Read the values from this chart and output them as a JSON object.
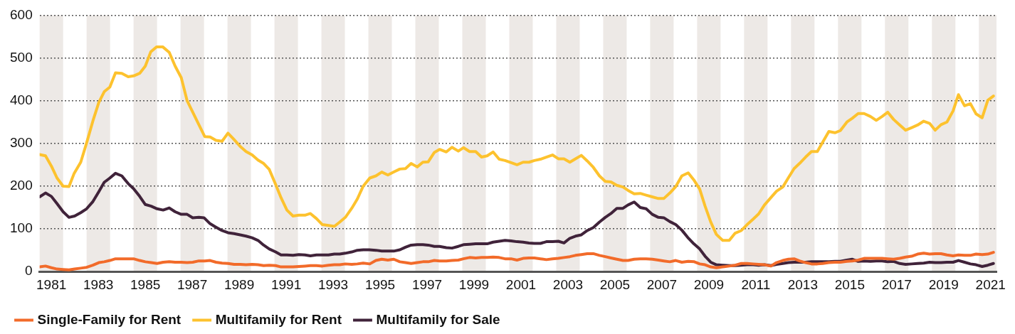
{
  "chart_data": {
    "type": "line",
    "marker": "none",
    "grid": "y",
    "legend": "bottom left",
    "xlim": [
      1981,
      2021.75
    ],
    "ylim": [
      0,
      600
    ],
    "yticks": [
      0,
      100,
      200,
      300,
      400,
      500,
      600
    ],
    "xticks": [
      {
        "value": 1981.5,
        "label": "1981"
      },
      {
        "value": 1983.5,
        "label": "1983"
      },
      {
        "value": 1985.5,
        "label": "1985"
      },
      {
        "value": 1987.5,
        "label": "1987"
      },
      {
        "value": 1989.5,
        "label": "1989"
      },
      {
        "value": 1991.5,
        "label": "1991"
      },
      {
        "value": 1993.5,
        "label": "1993"
      },
      {
        "value": 1995.5,
        "label": "1995"
      },
      {
        "value": 1997.5,
        "label": "1997"
      },
      {
        "value": 1999.5,
        "label": "1999"
      },
      {
        "value": 2001.5,
        "label": "2001"
      },
      {
        "value": 2003.5,
        "label": "2003"
      },
      {
        "value": 2005.5,
        "label": "2005"
      },
      {
        "value": 2007.5,
        "label": "2007"
      },
      {
        "value": 2009.5,
        "label": "2009"
      },
      {
        "value": 2011.5,
        "label": "2011"
      },
      {
        "value": 2013.5,
        "label": "2013"
      },
      {
        "value": 2015.5,
        "label": "2015"
      },
      {
        "value": 2017.5,
        "label": "2017"
      },
      {
        "value": 2019.5,
        "label": "2019"
      },
      {
        "value": 2021.5,
        "label": "2021"
      }
    ],
    "bands": [
      {
        "axis": "x",
        "from": 1981,
        "to": 1982,
        "color": "#ede9e6"
      },
      {
        "axis": "x",
        "from": 1983,
        "to": 1984,
        "color": "#ede9e6"
      },
      {
        "axis": "x",
        "from": 1985,
        "to": 1986,
        "color": "#ede9e6"
      },
      {
        "axis": "x",
        "from": 1987,
        "to": 1988,
        "color": "#ede9e6"
      },
      {
        "axis": "x",
        "from": 1989,
        "to": 1990,
        "color": "#ede9e6"
      },
      {
        "axis": "x",
        "from": 1991,
        "to": 1992,
        "color": "#ede9e6"
      },
      {
        "axis": "x",
        "from": 1993,
        "to": 1994,
        "color": "#ede9e6"
      },
      {
        "axis": "x",
        "from": 1995,
        "to": 1996,
        "color": "#ede9e6"
      },
      {
        "axis": "x",
        "from": 1997,
        "to": 1998,
        "color": "#ede9e6"
      },
      {
        "axis": "x",
        "from": 1999,
        "to": 2000,
        "color": "#ede9e6"
      },
      {
        "axis": "x",
        "from": 2001,
        "to": 2002,
        "color": "#ede9e6"
      },
      {
        "axis": "x",
        "from": 2003,
        "to": 2004,
        "color": "#ede9e6"
      },
      {
        "axis": "x",
        "from": 2005,
        "to": 2006,
        "color": "#ede9e6"
      },
      {
        "axis": "x",
        "from": 2007,
        "to": 2008,
        "color": "#ede9e6"
      },
      {
        "axis": "x",
        "from": 2009,
        "to": 2010,
        "color": "#ede9e6"
      },
      {
        "axis": "x",
        "from": 2011,
        "to": 2012,
        "color": "#ede9e6"
      },
      {
        "axis": "x",
        "from": 2013,
        "to": 2014,
        "color": "#ede9e6"
      },
      {
        "axis": "x",
        "from": 2015,
        "to": 2016,
        "color": "#ede9e6"
      },
      {
        "axis": "x",
        "from": 2017,
        "to": 2018,
        "color": "#ede9e6"
      },
      {
        "axis": "x",
        "from": 2019,
        "to": 2020,
        "color": "#ede9e6"
      },
      {
        "axis": "x",
        "from": 2021,
        "to": 2021.75,
        "color": "#ede9e6"
      }
    ],
    "series": [
      {
        "name": "Single-Family for Rent",
        "color": "#f26b2a",
        "x": [
          1981.0,
          1981.25,
          1981.5,
          1981.74,
          1982.0,
          1982.25,
          1982.49,
          1982.75,
          1983.0,
          1983.27,
          1983.52,
          1983.75,
          1983.99,
          1984.23,
          1984.5,
          1984.77,
          1985.0,
          1985.26,
          1985.5,
          1985.75,
          1986.0,
          1986.26,
          1986.52,
          1986.77,
          1987.03,
          1987.28,
          1987.52,
          1987.78,
          1988.03,
          1988.26,
          1988.51,
          1988.77,
          1989.02,
          1989.28,
          1989.54,
          1989.79,
          1990.05,
          1990.3,
          1990.54,
          1990.78,
          1991.05,
          1991.28,
          1991.53,
          1991.79,
          1992.04,
          1992.3,
          1992.53,
          1992.79,
          1993.04,
          1993.3,
          1993.55,
          1993.78,
          1994.02,
          1994.29,
          1994.53,
          1994.78,
          1995.06,
          1995.32,
          1995.57,
          1995.83,
          1996.08,
          1996.34,
          1996.58,
          1996.82,
          1997.08,
          1997.32,
          1997.55,
          1997.81,
          1998.03,
          1998.32,
          1998.56,
          1998.83,
          1999.05,
          1999.31,
          1999.57,
          1999.82,
          2000.06,
          2000.31,
          2000.57,
          2000.82,
          2001.08,
          2001.33,
          2001.59,
          2001.84,
          2002.07,
          2002.33,
          2002.58,
          2002.84,
          2003.09,
          2003.33,
          2003.58,
          2003.82,
          2004.07,
          2004.32,
          2004.58,
          2004.84,
          2005.09,
          2005.33,
          2005.58,
          2005.84,
          2006.06,
          2006.32,
          2006.58,
          2006.83,
          2007.09,
          2007.35,
          2007.58,
          2007.84,
          2008.09,
          2008.35,
          2008.62,
          2008.88,
          2009.11,
          2009.34,
          2009.58,
          2009.82,
          2010.09,
          2010.37,
          2010.62,
          2010.88,
          2011.13,
          2011.39,
          2011.62,
          2011.87,
          2012.14,
          2012.38,
          2012.65,
          2012.89,
          2013.13,
          2013.36,
          2013.62,
          2013.87,
          2014.12,
          2014.35,
          2014.61,
          2014.87,
          2015.1,
          2015.38,
          2015.61,
          2015.86,
          2016.11,
          2016.38,
          2016.63,
          2016.88,
          2017.12,
          2017.37,
          2017.63,
          2017.88,
          2018.14,
          2018.39,
          2018.65,
          2018.9,
          2019.14,
          2019.39,
          2019.64,
          2019.9,
          2020.13,
          2020.39,
          2020.64,
          2020.88,
          2021.14,
          2021.38,
          2021.62
        ],
        "values": [
          11,
          13,
          9,
          6,
          5,
          4,
          6,
          8,
          10,
          15,
          21,
          23,
          26,
          30,
          30,
          30,
          30,
          26,
          23,
          21,
          19,
          22,
          23,
          22,
          22,
          21,
          22,
          25,
          25,
          26,
          22,
          20,
          19,
          17,
          17,
          16,
          17,
          16,
          14,
          15,
          14,
          11,
          11,
          11,
          12,
          13,
          14,
          14,
          13,
          15,
          16,
          16,
          18,
          17,
          18,
          20,
          18,
          26,
          29,
          27,
          29,
          23,
          21,
          19,
          21,
          23,
          23,
          26,
          25,
          25,
          26,
          27,
          30,
          33,
          32,
          33,
          33,
          34,
          33,
          30,
          30,
          27,
          31,
          32,
          32,
          30,
          28,
          30,
          31,
          33,
          35,
          38,
          40,
          42,
          42,
          38,
          35,
          32,
          29,
          26,
          26,
          29,
          30,
          30,
          29,
          27,
          25,
          23,
          26,
          22,
          24,
          23,
          18,
          16,
          11,
          9,
          11,
          13,
          15,
          19,
          19,
          18,
          17,
          16,
          13,
          21,
          26,
          29,
          30,
          25,
          21,
          18,
          18,
          19,
          21,
          22,
          22,
          24,
          25,
          27,
          31,
          31,
          31,
          31,
          30,
          29,
          31,
          34,
          36,
          41,
          43,
          41,
          42,
          42,
          39,
          37,
          39,
          38,
          38,
          41,
          40,
          41,
          45
        ]
      },
      {
        "name": "Multifamily for Rent",
        "color": "#fdc22e",
        "x": [
          1981.0,
          1981.25,
          1981.5,
          1981.74,
          1982.0,
          1982.25,
          1982.47,
          1982.75,
          1983.0,
          1983.27,
          1983.52,
          1983.75,
          1983.99,
          1984.23,
          1984.5,
          1984.77,
          1985.0,
          1985.26,
          1985.5,
          1985.73,
          1985.98,
          1986.24,
          1986.52,
          1986.77,
          1987.03,
          1987.28,
          1987.52,
          1987.78,
          1988.03,
          1988.26,
          1988.51,
          1988.77,
          1989.02,
          1989.28,
          1989.54,
          1989.79,
          1990.05,
          1990.3,
          1990.54,
          1990.78,
          1991.05,
          1991.28,
          1991.53,
          1991.79,
          1992.04,
          1992.3,
          1992.53,
          1992.79,
          1993.04,
          1993.3,
          1993.55,
          1993.78,
          1994.02,
          1994.29,
          1994.53,
          1994.78,
          1995.06,
          1995.32,
          1995.57,
          1995.83,
          1996.08,
          1996.34,
          1996.58,
          1996.82,
          1997.08,
          1997.32,
          1997.55,
          1997.81,
          1998.03,
          1998.32,
          1998.56,
          1998.83,
          1999.05,
          1999.31,
          1999.57,
          1999.82,
          2000.06,
          2000.31,
          2000.57,
          2000.82,
          2001.08,
          2001.33,
          2001.59,
          2001.84,
          2002.07,
          2002.33,
          2002.58,
          2002.84,
          2003.09,
          2003.33,
          2003.58,
          2003.82,
          2004.07,
          2004.32,
          2004.58,
          2004.84,
          2005.09,
          2005.33,
          2005.58,
          2005.84,
          2006.06,
          2006.32,
          2006.58,
          2006.83,
          2007.09,
          2007.35,
          2007.58,
          2007.84,
          2008.09,
          2008.35,
          2008.62,
          2008.88,
          2009.11,
          2009.34,
          2009.58,
          2009.82,
          2010.09,
          2010.37,
          2010.62,
          2010.88,
          2011.13,
          2011.39,
          2011.62,
          2011.87,
          2012.14,
          2012.38,
          2012.65,
          2012.89,
          2013.13,
          2013.36,
          2013.62,
          2013.87,
          2014.12,
          2014.35,
          2014.61,
          2014.87,
          2015.1,
          2015.38,
          2015.61,
          2015.86,
          2016.11,
          2016.38,
          2016.63,
          2016.88,
          2017.12,
          2017.37,
          2017.63,
          2017.88,
          2018.14,
          2018.39,
          2018.65,
          2018.9,
          2019.14,
          2019.39,
          2019.64,
          2019.9,
          2020.13,
          2020.39,
          2020.64,
          2020.88,
          2021.14,
          2021.38,
          2021.62
        ],
        "values": [
          274,
          271,
          247,
          219,
          200,
          199,
          230,
          256,
          301,
          353,
          396,
          421,
          432,
          465,
          464,
          456,
          458,
          464,
          481,
          514,
          526,
          526,
          513,
          481,
          454,
          400,
          373,
          344,
          316,
          315,
          307,
          305,
          324,
          309,
          293,
          281,
          273,
          261,
          253,
          239,
          204,
          173,
          144,
          130,
          132,
          132,
          136,
          124,
          110,
          108,
          106,
          116,
          127,
          148,
          170,
          200,
          219,
          224,
          233,
          226,
          233,
          240,
          241,
          253,
          245,
          256,
          257,
          279,
          286,
          280,
          291,
          282,
          290,
          281,
          281,
          268,
          271,
          280,
          263,
          260,
          255,
          250,
          256,
          256,
          260,
          263,
          268,
          273,
          264,
          264,
          256,
          264,
          272,
          259,
          244,
          224,
          211,
          210,
          202,
          198,
          190,
          182,
          183,
          179,
          175,
          171,
          171,
          184,
          199,
          224,
          231,
          213,
          193,
          153,
          116,
          87,
          73,
          73,
          90,
          96,
          110,
          123,
          135,
          156,
          173,
          188,
          198,
          220,
          241,
          253,
          268,
          281,
          281,
          303,
          328,
          325,
          330,
          350,
          359,
          370,
          370,
          363,
          354,
          363,
          373,
          356,
          343,
          331,
          337,
          343,
          352,
          347,
          331,
          344,
          350,
          376,
          414,
          388,
          393,
          369,
          360,
          401,
          411
        ]
      },
      {
        "name": "Multifamily for Sale",
        "color": "#40233a",
        "x": [
          1981.0,
          1981.25,
          1981.5,
          1981.74,
          1982.0,
          1982.25,
          1982.49,
          1982.75,
          1983.0,
          1983.27,
          1983.52,
          1983.75,
          1983.99,
          1984.23,
          1984.5,
          1984.77,
          1985.0,
          1985.26,
          1985.5,
          1985.75,
          1986.0,
          1986.26,
          1986.52,
          1986.77,
          1987.03,
          1987.28,
          1987.52,
          1987.78,
          1988.0,
          1988.26,
          1988.51,
          1988.77,
          1989.02,
          1989.28,
          1989.54,
          1989.79,
          1990.05,
          1990.3,
          1990.54,
          1990.78,
          1991.05,
          1991.28,
          1991.53,
          1991.79,
          1992.04,
          1992.3,
          1992.53,
          1992.79,
          1993.04,
          1993.3,
          1993.55,
          1993.78,
          1994.02,
          1994.29,
          1994.53,
          1994.78,
          1995.04,
          1995.32,
          1995.57,
          1995.83,
          1996.08,
          1996.34,
          1996.58,
          1996.82,
          1997.08,
          1997.32,
          1997.55,
          1997.81,
          1998.03,
          1998.32,
          1998.56,
          1998.83,
          1999.05,
          1999.31,
          1999.57,
          1999.82,
          2000.06,
          2000.31,
          2000.57,
          2000.82,
          2001.08,
          2001.33,
          2001.59,
          2001.84,
          2002.07,
          2002.33,
          2002.58,
          2002.84,
          2003.09,
          2003.33,
          2003.58,
          2003.82,
          2004.07,
          2004.32,
          2004.58,
          2004.84,
          2005.09,
          2005.33,
          2005.58,
          2005.84,
          2006.06,
          2006.32,
          2006.58,
          2006.83,
          2007.09,
          2007.35,
          2007.58,
          2007.84,
          2008.09,
          2008.35,
          2008.6,
          2008.86,
          2009.11,
          2009.34,
          2009.58,
          2009.82,
          2010.09,
          2010.37,
          2010.62,
          2010.88,
          2011.13,
          2011.39,
          2011.62,
          2011.87,
          2012.14,
          2012.38,
          2012.65,
          2012.89,
          2013.13,
          2013.36,
          2013.62,
          2013.87,
          2014.12,
          2014.35,
          2014.61,
          2014.87,
          2015.1,
          2015.38,
          2015.61,
          2015.86,
          2016.11,
          2016.38,
          2016.63,
          2016.88,
          2017.12,
          2017.37,
          2017.63,
          2017.88,
          2018.14,
          2018.39,
          2018.65,
          2018.9,
          2019.14,
          2019.39,
          2019.64,
          2019.9,
          2020.13,
          2020.39,
          2020.64,
          2020.88,
          2021.14,
          2021.38,
          2021.62
        ],
        "values": [
          175,
          184,
          176,
          159,
          140,
          127,
          130,
          138,
          147,
          164,
          187,
          209,
          219,
          230,
          224,
          206,
          194,
          176,
          157,
          153,
          147,
          144,
          149,
          140,
          134,
          134,
          126,
          127,
          126,
          112,
          104,
          96,
          91,
          89,
          86,
          83,
          79,
          73,
          62,
          53,
          46,
          39,
          39,
          38,
          40,
          39,
          37,
          39,
          39,
          39,
          41,
          41,
          43,
          46,
          50,
          51,
          51,
          50,
          48,
          48,
          48,
          51,
          57,
          62,
          63,
          63,
          62,
          59,
          59,
          56,
          55,
          59,
          63,
          64,
          65,
          65,
          65,
          69,
          71,
          73,
          72,
          70,
          69,
          67,
          66,
          66,
          70,
          70,
          71,
          67,
          78,
          83,
          86,
          96,
          103,
          116,
          127,
          136,
          148,
          148,
          156,
          163,
          150,
          147,
          134,
          127,
          126,
          117,
          110,
          97,
          80,
          65,
          53,
          36,
          22,
          16,
          15,
          14,
          14,
          15,
          16,
          16,
          15,
          16,
          14,
          17,
          19,
          21,
          22,
          22,
          22,
          23,
          23,
          23,
          23,
          24,
          24,
          27,
          29,
          24,
          25,
          24,
          25,
          25,
          23,
          24,
          19,
          17,
          18,
          19,
          20,
          22,
          21,
          21,
          22,
          22,
          26,
          22,
          18,
          16,
          12,
          15,
          19
        ]
      }
    ]
  }
}
